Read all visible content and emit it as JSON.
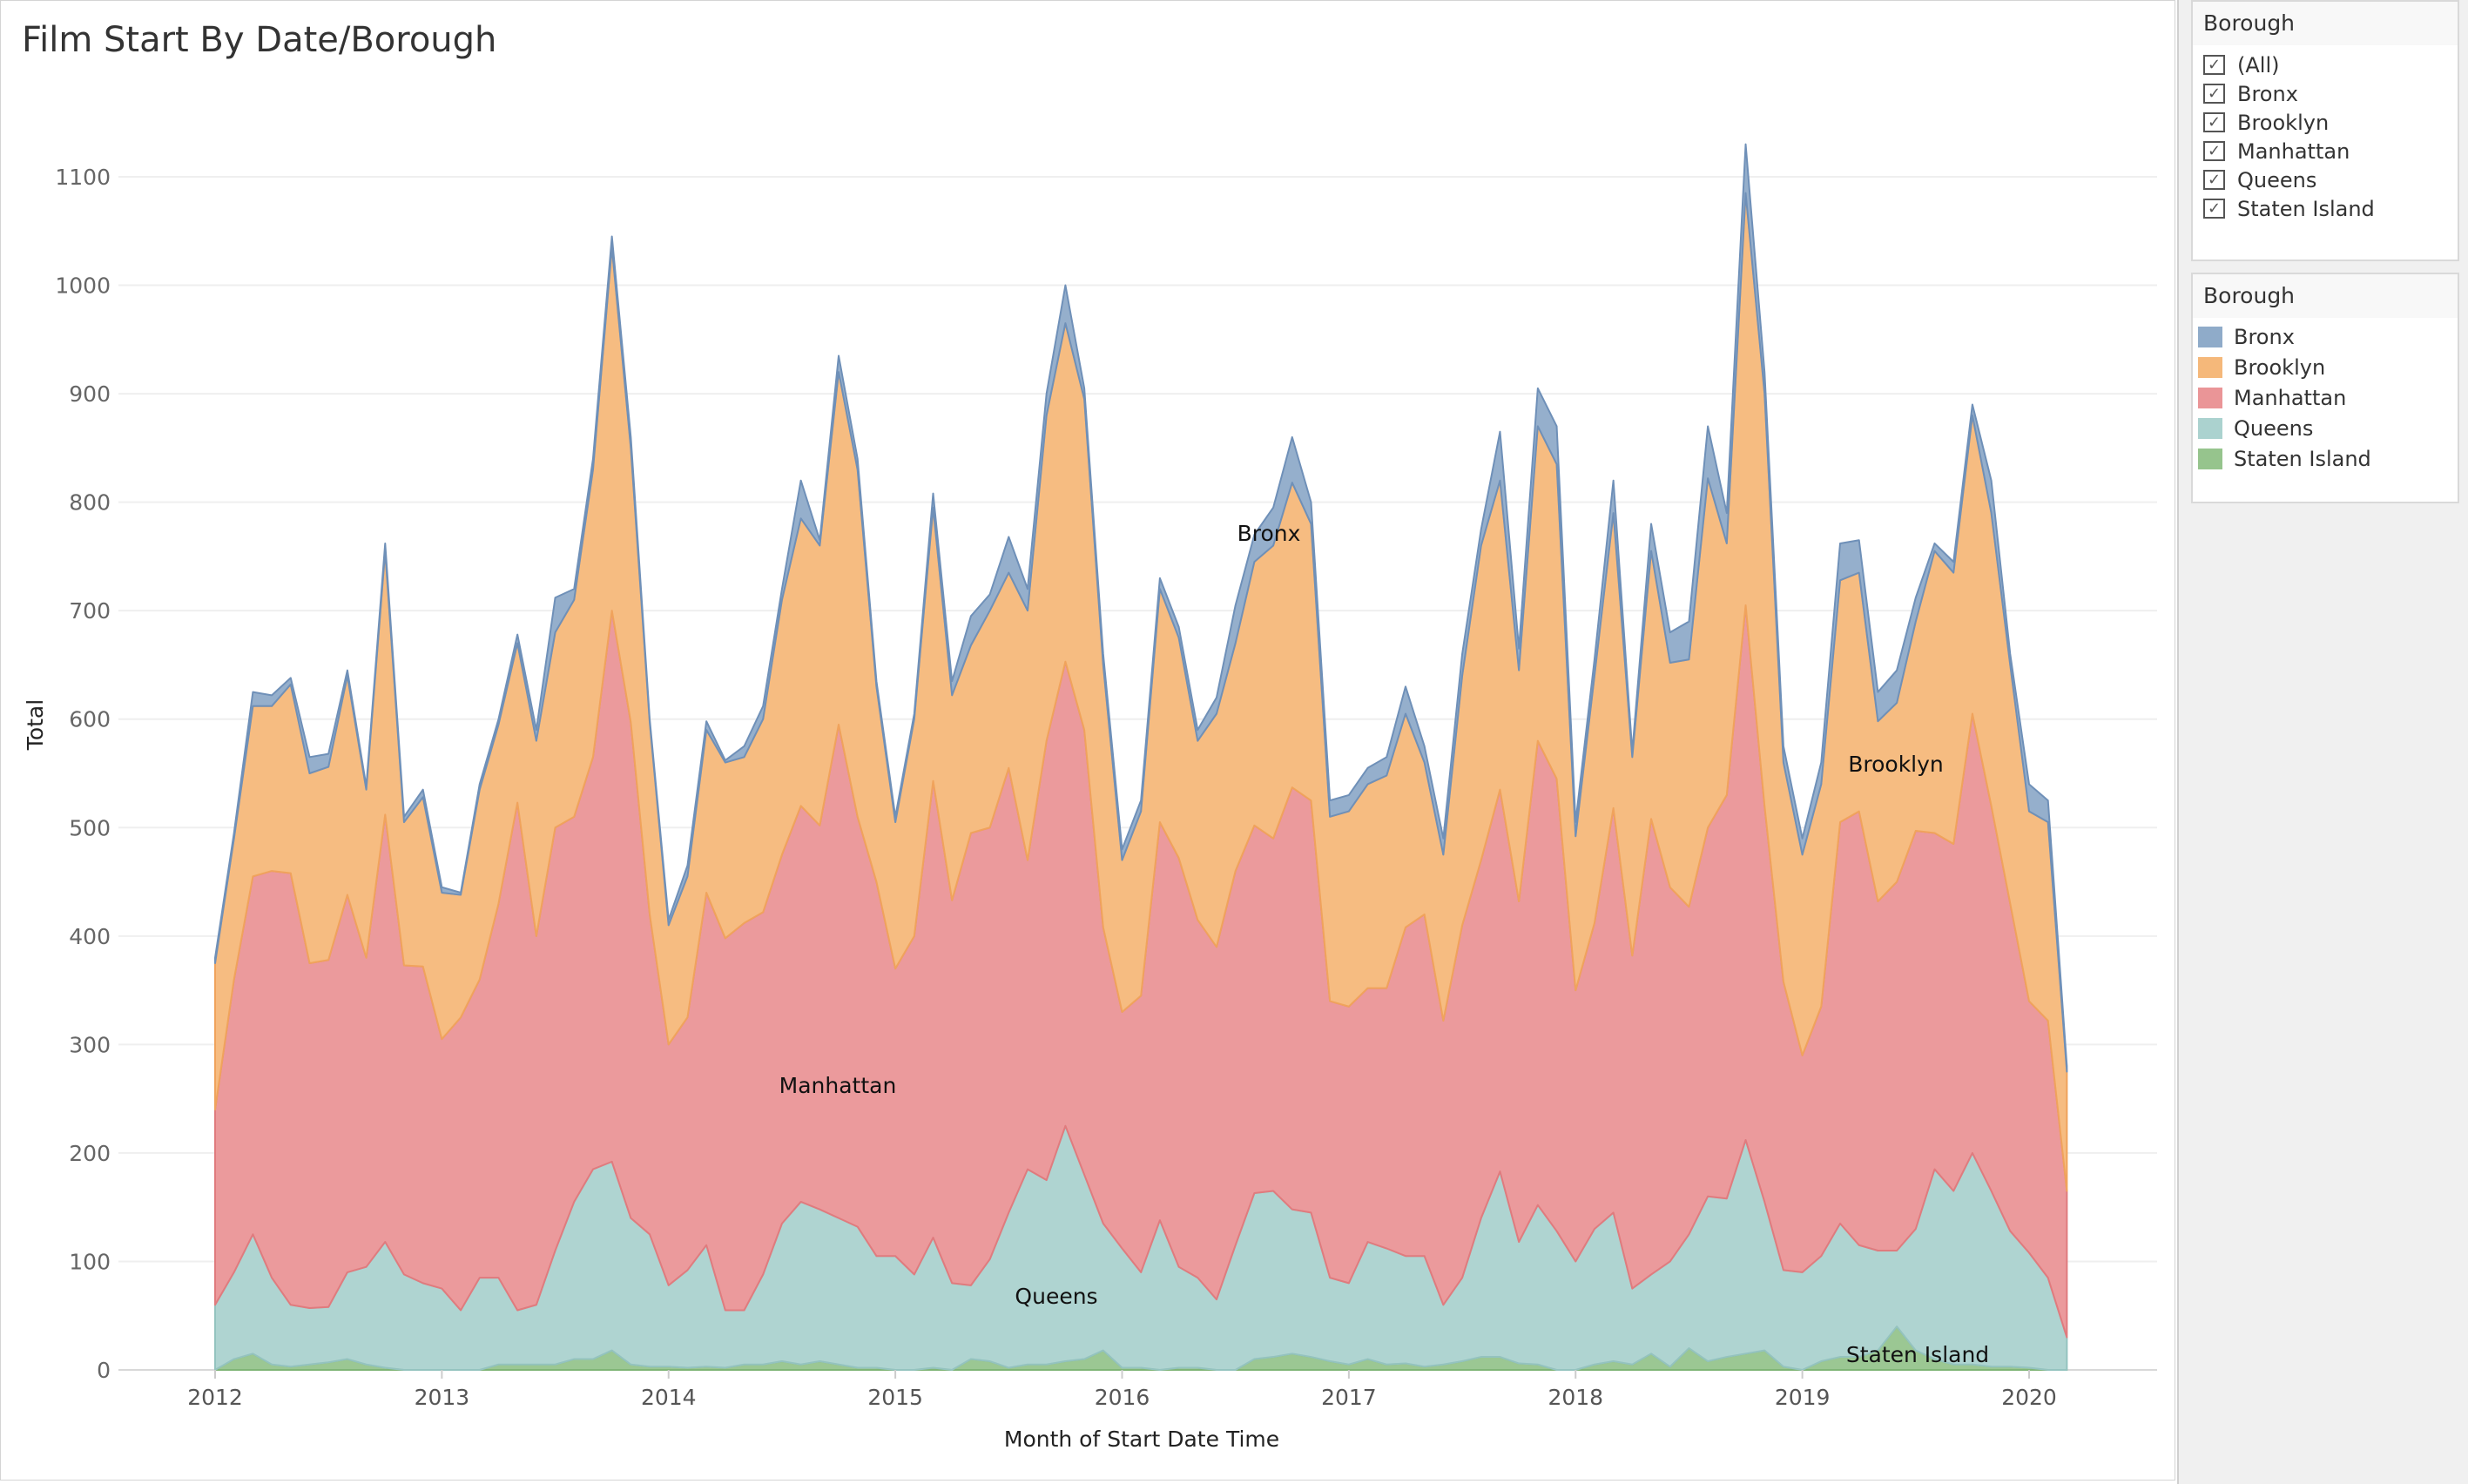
{
  "title": "Film Start By Date/Borough",
  "filter": {
    "header": "Borough",
    "items": [
      {
        "label": "(All)",
        "checked": true
      },
      {
        "label": "Bronx",
        "checked": true
      },
      {
        "label": "Brooklyn",
        "checked": true
      },
      {
        "label": "Manhattan",
        "checked": true
      },
      {
        "label": "Queens",
        "checked": true
      },
      {
        "label": "Staten Island",
        "checked": true
      }
    ],
    "check_glyph": "✓"
  },
  "legend": {
    "header": "Borough",
    "items": [
      {
        "label": "Bronx",
        "color": "#8fabc9"
      },
      {
        "label": "Brooklyn",
        "color": "#f5b87a"
      },
      {
        "label": "Manhattan",
        "color": "#ea9597"
      },
      {
        "label": "Queens",
        "color": "#abd2cf"
      },
      {
        "label": "Staten Island",
        "color": "#96c48d"
      }
    ]
  },
  "chart_data": {
    "type": "area",
    "stacked": true,
    "title": "Film Start By Date/Borough",
    "xlabel": "Month of Start Date Time",
    "ylabel": "Total",
    "x_start": "2012-01",
    "x_end": "2020-03",
    "x_interval": "month",
    "x_ticks": [
      "2012",
      "2013",
      "2014",
      "2015",
      "2016",
      "2017",
      "2018",
      "2019",
      "2020"
    ],
    "y_ticks": [
      0,
      100,
      200,
      300,
      400,
      500,
      600,
      700,
      800,
      900,
      1000,
      1100
    ],
    "ylim": [
      0,
      1170
    ],
    "grid": "horizontal",
    "legend_position": "right",
    "series": [
      {
        "name": "Staten Island",
        "color": "#96c48d",
        "area_label": "Staten Island",
        "values": [
          0,
          10,
          15,
          5,
          3,
          5,
          7,
          10,
          5,
          2,
          0,
          0,
          0,
          0,
          0,
          5,
          5,
          5,
          5,
          10,
          10,
          18,
          5,
          3,
          3,
          2,
          3,
          2,
          5,
          5,
          8,
          5,
          8,
          5,
          2,
          2,
          0,
          0,
          2,
          0,
          10,
          8,
          2,
          5,
          5,
          8,
          10,
          18,
          2,
          2,
          0,
          2,
          2,
          0,
          0,
          10,
          12,
          15,
          12,
          8,
          5,
          10,
          5,
          6,
          3,
          5,
          8,
          12,
          12,
          6,
          5,
          0,
          0,
          5,
          8,
          5,
          15,
          3,
          20,
          8,
          12,
          15,
          18,
          3,
          0,
          8,
          12,
          12,
          18,
          40,
          18,
          10,
          5,
          5,
          3,
          3,
          2,
          0,
          0
        ]
      },
      {
        "name": "Queens",
        "color": "#abd2cf",
        "area_label": "Queens",
        "values": [
          60,
          80,
          110,
          80,
          57,
          52,
          51,
          80,
          90,
          116,
          88,
          80,
          75,
          55,
          85,
          80,
          50,
          55,
          105,
          145,
          175,
          174,
          135,
          122,
          75,
          90,
          112,
          53,
          50,
          83,
          127,
          150,
          140,
          135,
          130,
          103,
          105,
          88,
          120,
          80,
          68,
          94,
          143,
          180,
          170,
          217,
          170,
          117,
          110,
          88,
          138,
          93,
          83,
          65,
          115,
          153,
          153,
          133,
          133,
          77,
          75,
          108,
          107,
          99,
          102,
          55,
          77,
          128,
          171,
          112,
          147,
          128,
          100,
          125,
          137,
          70,
          73,
          97,
          105,
          152,
          146,
          197,
          137,
          89,
          90,
          97,
          123,
          103,
          92,
          70,
          112,
          175,
          160,
          195,
          162,
          125,
          106,
          85,
          30
        ]
      },
      {
        "name": "Manhattan",
        "color": "#ea9597",
        "area_label": "Manhattan",
        "values": [
          180,
          270,
          330,
          375,
          398,
          318,
          320,
          348,
          285,
          394,
          285,
          292,
          230,
          270,
          275,
          345,
          468,
          340,
          390,
          355,
          380,
          508,
          457,
          295,
          222,
          233,
          325,
          343,
          357,
          334,
          340,
          365,
          354,
          455,
          378,
          345,
          265,
          312,
          421,
          353,
          417,
          398,
          410,
          285,
          405,
          428,
          410,
          273,
          218,
          255,
          367,
          377,
          330,
          325,
          345,
          339,
          325,
          389,
          380,
          255,
          255,
          234,
          240,
          303,
          315,
          262,
          325,
          330,
          352,
          314,
          428,
          417,
          250,
          282,
          373,
          307,
          420,
          345,
          302,
          340,
          372,
          493,
          365,
          266,
          200,
          230,
          370,
          400,
          322,
          340,
          367,
          310,
          320,
          405,
          355,
          302,
          232,
          237,
          135
        ]
      },
      {
        "name": "Brooklyn",
        "color": "#f5b87a",
        "area_label": "Brooklyn",
        "values": [
          135,
          130,
          157,
          152,
          174,
          175,
          178,
          202,
          155,
          243,
          132,
          156,
          135,
          113,
          175,
          165,
          147,
          180,
          180,
          200,
          265,
          335,
          253,
          177,
          110,
          130,
          150,
          162,
          153,
          178,
          235,
          265,
          258,
          325,
          320,
          180,
          135,
          200,
          252,
          189,
          173,
          200,
          180,
          230,
          300,
          312,
          305,
          242,
          140,
          170,
          215,
          203,
          165,
          215,
          210,
          243,
          270,
          281,
          255,
          170,
          180,
          188,
          196,
          197,
          140,
          153,
          230,
          290,
          285,
          213,
          290,
          290,
          142,
          228,
          272,
          183,
          247,
          207,
          228,
          322,
          232,
          380,
          380,
          202,
          185,
          205,
          223,
          220,
          166,
          165,
          193,
          260,
          250,
          275,
          270,
          220,
          175,
          183,
          110
        ]
      },
      {
        "name": "Bronx",
        "color": "#8fabc9",
        "area_label": "Bronx",
        "values": [
          5,
          5,
          13,
          10,
          6,
          15,
          12,
          5,
          3,
          7,
          5,
          7,
          5,
          2,
          5,
          5,
          8,
          10,
          32,
          10,
          10,
          10,
          10,
          3,
          5,
          10,
          8,
          2,
          10,
          12,
          10,
          35,
          5,
          15,
          10,
          5,
          5,
          5,
          13,
          13,
          27,
          15,
          33,
          20,
          20,
          35,
          10,
          10,
          10,
          10,
          10,
          10,
          10,
          15,
          35,
          25,
          35,
          42,
          20,
          15,
          15,
          15,
          17,
          25,
          15,
          15,
          20,
          15,
          45,
          20,
          35,
          35,
          13,
          15,
          30,
          5,
          25,
          28,
          35,
          48,
          28,
          45,
          20,
          15,
          15,
          20,
          34,
          30,
          27,
          30,
          22,
          7,
          10,
          10,
          30,
          10,
          25,
          20,
          5
        ]
      }
    ]
  }
}
